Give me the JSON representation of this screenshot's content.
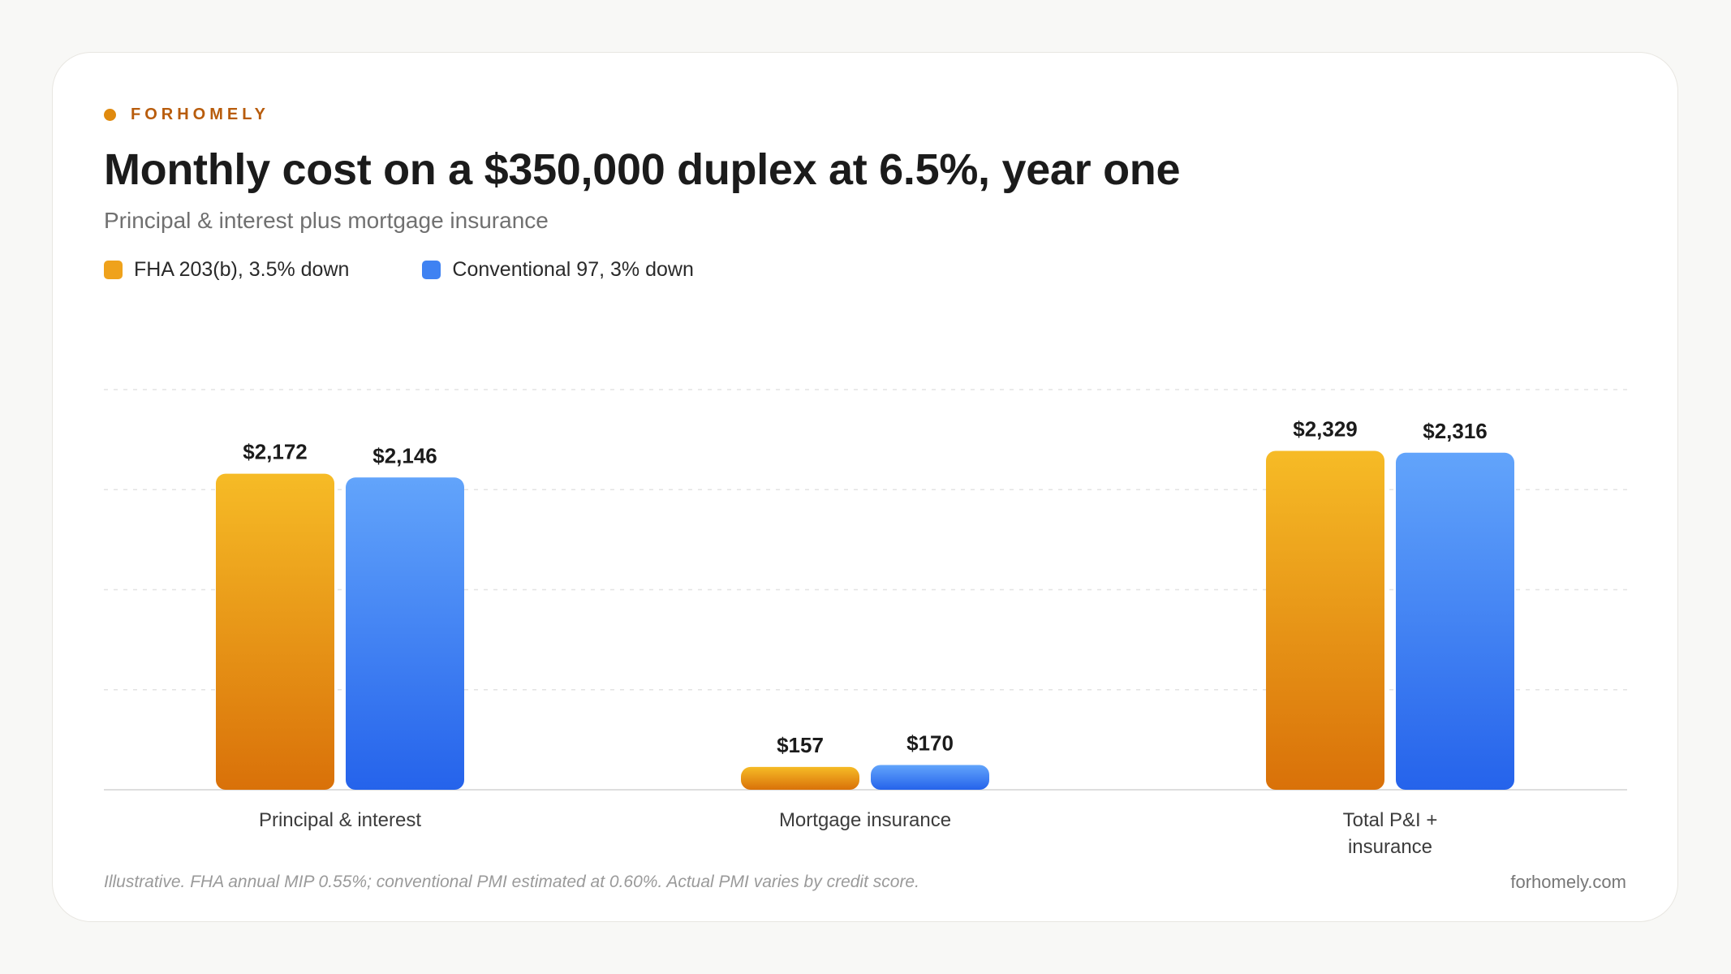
{
  "brand": {
    "name": "FORHOMELY",
    "color": "#e08a0e",
    "text_color": "#b85c0c"
  },
  "title": "Monthly cost on a $350,000 duplex at 6.5%, year one",
  "subtitle": "Principal & interest plus mortgage insurance",
  "colors": {
    "fha_top": "#f6bb26",
    "fha_bottom": "#d97109",
    "conv_top": "#62a4fb",
    "conv_bottom": "#2563eb",
    "fha_swatch": "#efa21c",
    "conv_swatch": "#3f82f2",
    "grid": "#e3e3e3",
    "axis": "#d4d4d4"
  },
  "chart_data": {
    "type": "bar",
    "categories": [
      "Principal & interest",
      "Mortgage insurance",
      "Total P&I + insurance"
    ],
    "series": [
      {
        "name": "FHA 203(b), 3.5% down",
        "values": [
          2172,
          157,
          2329
        ],
        "labels": [
          "$2,172",
          "$157",
          "$2,329"
        ]
      },
      {
        "name": "Conventional 97, 3% down",
        "values": [
          2146,
          170,
          2316
        ],
        "labels": [
          "$2,146",
          "$170",
          "$2,316"
        ]
      }
    ],
    "ylim": [
      0,
      2750
    ],
    "grid": true,
    "legend": "top-left"
  },
  "footnote": "Illustrative. FHA annual MIP 0.55%; conventional PMI estimated at 0.60%. Actual PMI varies by credit score.",
  "site": "forhomely.com"
}
